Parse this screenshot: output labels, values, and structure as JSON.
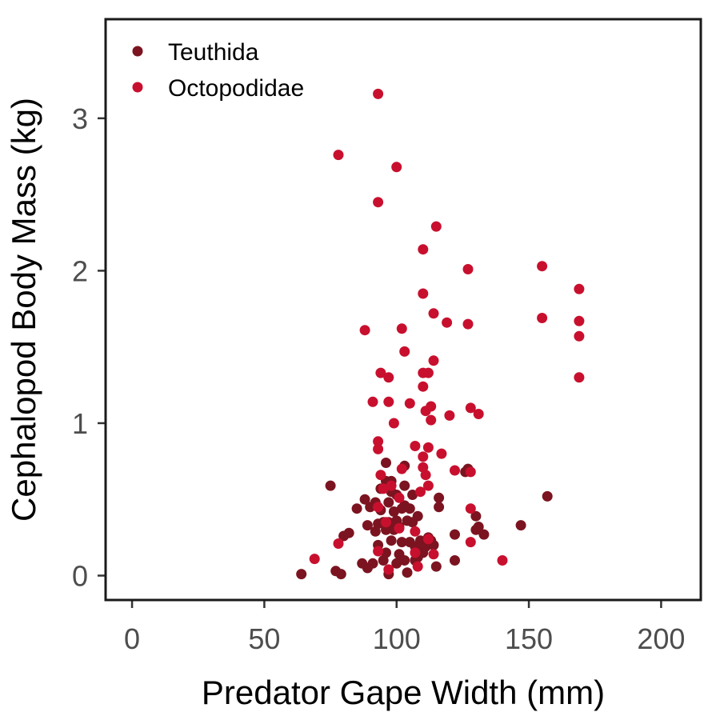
{
  "chart_data": {
    "type": "scatter",
    "xlabel": "Predator Gape Width (mm)",
    "ylabel": "Cephalopod Body Mass (kg)",
    "xlim": [
      -10,
      215
    ],
    "ylim": [
      -0.16,
      3.65
    ],
    "x_ticks": [
      0,
      50,
      100,
      150,
      200
    ],
    "y_ticks": [
      0,
      1,
      2,
      3
    ],
    "grid": false,
    "legend_position": "top-left",
    "series": [
      {
        "name": "Teuthida",
        "color": "#7b1420",
        "points": [
          [
            64,
            0.01
          ],
          [
            77,
            0.03
          ],
          [
            79,
            0.01
          ],
          [
            75,
            0.59
          ],
          [
            80,
            0.26
          ],
          [
            82,
            0.28
          ],
          [
            85,
            0.44
          ],
          [
            87,
            0.08
          ],
          [
            88,
            0.5
          ],
          [
            89,
            0.05
          ],
          [
            89,
            0.33
          ],
          [
            90,
            0.45
          ],
          [
            91,
            0.08
          ],
          [
            92,
            0.29
          ],
          [
            92,
            0.48
          ],
          [
            93,
            0.2
          ],
          [
            93,
            0.34
          ],
          [
            94,
            0.43
          ],
          [
            94,
            0.57
          ],
          [
            95,
            0.35
          ],
          [
            95,
            0.1
          ],
          [
            96,
            0.15
          ],
          [
            96,
            0.3
          ],
          [
            96,
            0.62
          ],
          [
            96,
            0.74
          ],
          [
            97,
            0.01
          ],
          [
            97,
            0.35
          ],
          [
            97,
            0.48
          ],
          [
            98,
            0.23
          ],
          [
            98,
            0.55
          ],
          [
            98,
            0.62
          ],
          [
            99,
            0.3
          ],
          [
            99,
            0.42
          ],
          [
            100,
            0.08
          ],
          [
            100,
            0.36
          ],
          [
            100,
            0.53
          ],
          [
            101,
            0.14
          ],
          [
            101,
            0.32
          ],
          [
            102,
            0.44
          ],
          [
            102,
            0.22
          ],
          [
            103,
            0.46
          ],
          [
            103,
            0.1
          ],
          [
            103,
            0.59
          ],
          [
            103,
            0.72
          ],
          [
            104,
            0.02
          ],
          [
            104,
            0.36
          ],
          [
            105,
            0.44
          ],
          [
            105,
            0.22
          ],
          [
            106,
            0.35
          ],
          [
            106,
            0.53
          ],
          [
            107,
            0.1
          ],
          [
            107,
            0.19
          ],
          [
            108,
            0.39
          ],
          [
            108,
            0.12
          ],
          [
            109,
            0.23
          ],
          [
            110,
            0.2
          ],
          [
            110,
            0.15
          ],
          [
            111,
            0.19
          ],
          [
            112,
            0.25
          ],
          [
            113,
            0.23
          ],
          [
            114,
            0.2
          ],
          [
            115,
            0.06
          ],
          [
            116,
            0.45
          ],
          [
            116,
            0.51
          ],
          [
            122,
            0.1
          ],
          [
            122,
            0.27
          ],
          [
            126,
            0.68
          ],
          [
            127,
            0.7
          ],
          [
            130,
            0.3
          ],
          [
            130,
            0.39
          ],
          [
            131,
            0.32
          ],
          [
            133,
            0.27
          ],
          [
            147,
            0.33
          ],
          [
            157,
            0.52
          ]
        ]
      },
      {
        "name": "Octopodidae",
        "color": "#c8102e",
        "points": [
          [
            93,
            3.16
          ],
          [
            78,
            2.76
          ],
          [
            100,
            2.68
          ],
          [
            93,
            2.45
          ],
          [
            115,
            2.29
          ],
          [
            110,
            2.14
          ],
          [
            127,
            2.01
          ],
          [
            155,
            2.03
          ],
          [
            169,
            1.88
          ],
          [
            110,
            1.85
          ],
          [
            114,
            1.72
          ],
          [
            119,
            1.66
          ],
          [
            127,
            1.65
          ],
          [
            155,
            1.69
          ],
          [
            169,
            1.67
          ],
          [
            88,
            1.61
          ],
          [
            102,
            1.62
          ],
          [
            169,
            1.57
          ],
          [
            103,
            1.47
          ],
          [
            114,
            1.41
          ],
          [
            94,
            1.33
          ],
          [
            97,
            1.3
          ],
          [
            110,
            1.33
          ],
          [
            112,
            1.33
          ],
          [
            169,
            1.3
          ],
          [
            110,
            1.24
          ],
          [
            91,
            1.14
          ],
          [
            97,
            1.14
          ],
          [
            105,
            1.13
          ],
          [
            113,
            1.11
          ],
          [
            111,
            1.08
          ],
          [
            120,
            1.05
          ],
          [
            128,
            1.1
          ],
          [
            131,
            1.06
          ],
          [
            113,
            1.02
          ],
          [
            99,
            1.0
          ],
          [
            93,
            0.88
          ],
          [
            93,
            0.83
          ],
          [
            107,
            0.85
          ],
          [
            112,
            0.84
          ],
          [
            110,
            0.78
          ],
          [
            117,
            0.8
          ],
          [
            110,
            0.71
          ],
          [
            122,
            0.69
          ],
          [
            128,
            0.68
          ],
          [
            94,
            0.66
          ],
          [
            102,
            0.7
          ],
          [
            111,
            0.66
          ],
          [
            98,
            0.59
          ],
          [
            95,
            0.57
          ],
          [
            112,
            0.59
          ],
          [
            101,
            0.51
          ],
          [
            109,
            0.55
          ],
          [
            93,
            0.45
          ],
          [
            128,
            0.44
          ],
          [
            96,
            0.35
          ],
          [
            101,
            0.31
          ],
          [
            107,
            0.29
          ],
          [
            112,
            0.24
          ],
          [
            78,
            0.21
          ],
          [
            128,
            0.22
          ],
          [
            93,
            0.16
          ],
          [
            107,
            0.15
          ],
          [
            114,
            0.14
          ],
          [
            69,
            0.11
          ],
          [
            140,
            0.1
          ],
          [
            97,
            0.04
          ],
          [
            108,
            0.06
          ]
        ]
      }
    ]
  }
}
